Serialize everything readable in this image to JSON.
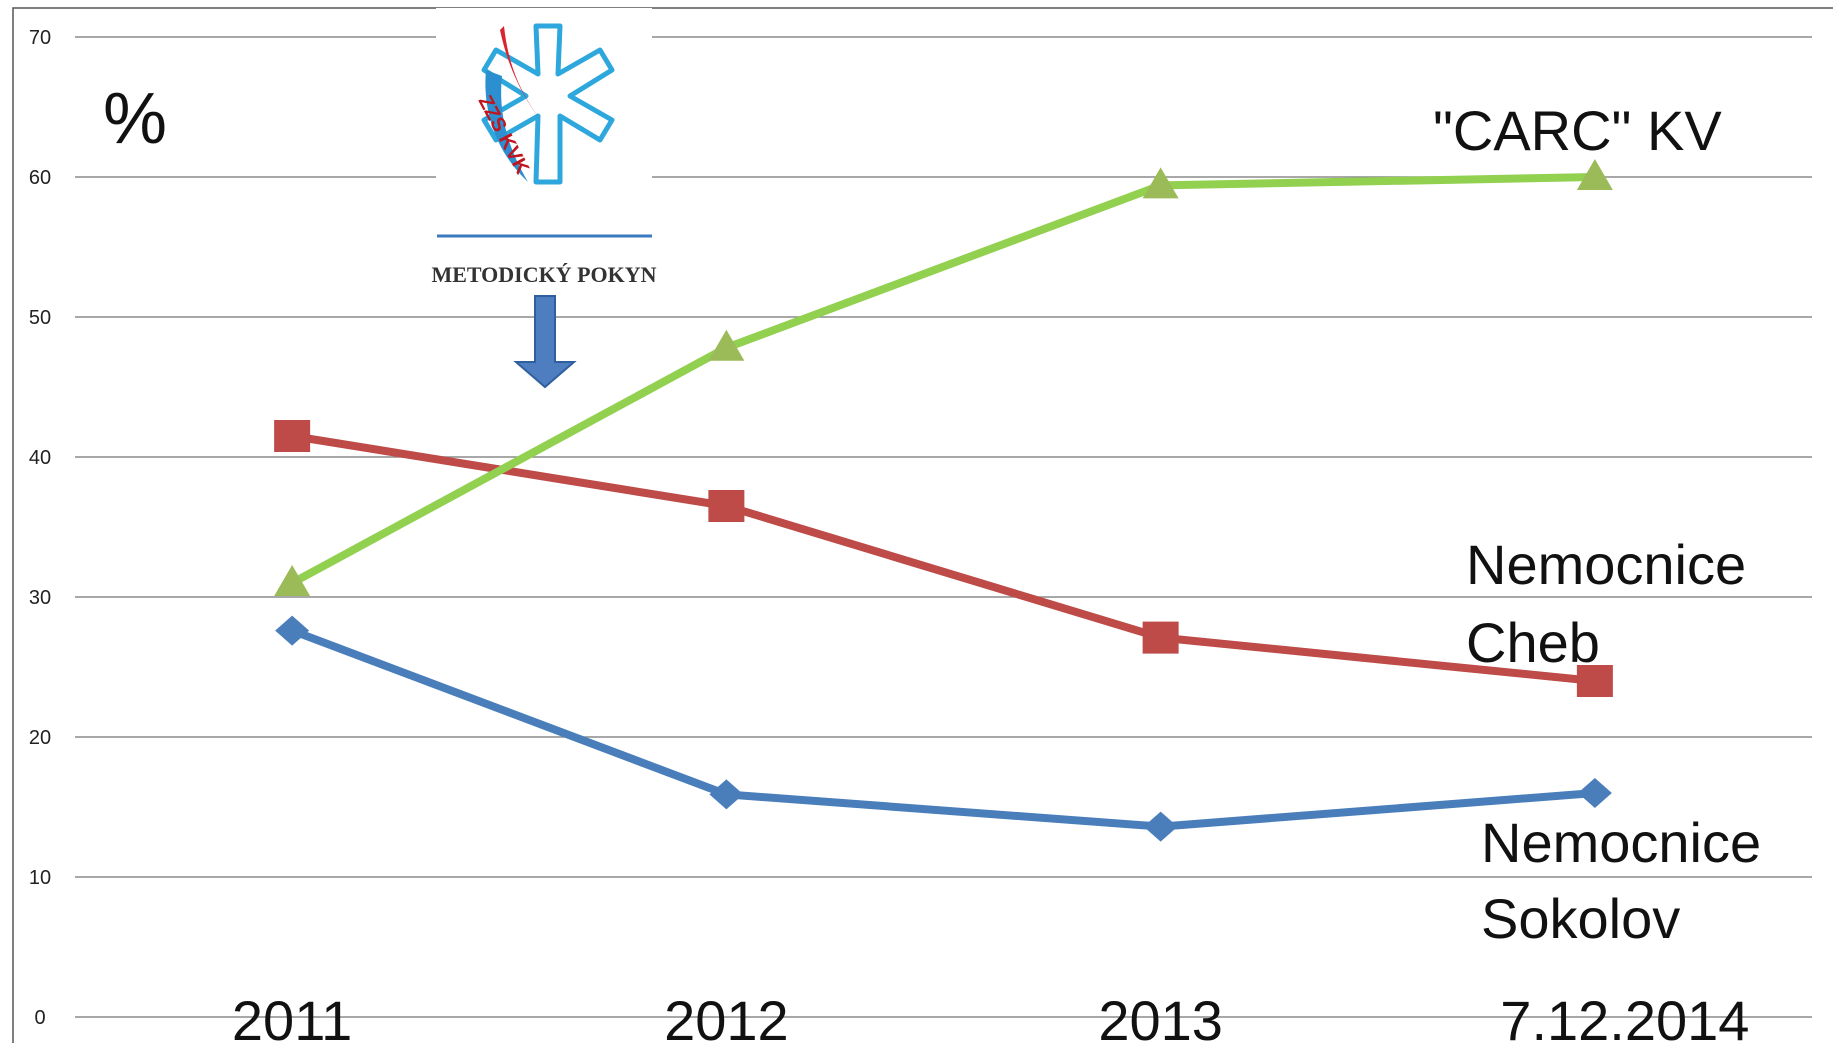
{
  "chart_data": {
    "type": "line",
    "categories": [
      "2011",
      "2012",
      "2013",
      "7.12.2014"
    ],
    "series": [
      {
        "name": "Nemocnice Sokolov",
        "values": [
          27.6,
          15.9,
          13.6,
          16.0
        ],
        "color": "#4a7ebb",
        "marker": "diamond"
      },
      {
        "name": "Nemocnice Cheb",
        "values": [
          41.5,
          36.5,
          27.1,
          24.0
        ],
        "color": "#be4b48",
        "marker": "square"
      },
      {
        "name": "\"CARC\" KV",
        "values": [
          31.0,
          47.8,
          59.4,
          60.0
        ],
        "color": "#92d050",
        "marker": "triangle",
        "marker_color": "#9bbb59"
      }
    ],
    "ylim": [
      0,
      70
    ],
    "yticks": [
      0,
      10,
      20,
      30,
      40,
      50,
      60,
      70
    ],
    "unit_label": "%",
    "grid": true,
    "legend": "inline labels",
    "annotations": {
      "carc": "\"CARC\" KV",
      "cheb_line1": "Nemocnice",
      "cheb_line2": "Cheb",
      "sokolov_line1": "Nemocnice",
      "sokolov_line2": "Sokolov"
    },
    "logo": {
      "text": "ZZS KVK",
      "caption": "METODICKÝ POKYN",
      "arrow_color": "#4f7ec0"
    }
  }
}
